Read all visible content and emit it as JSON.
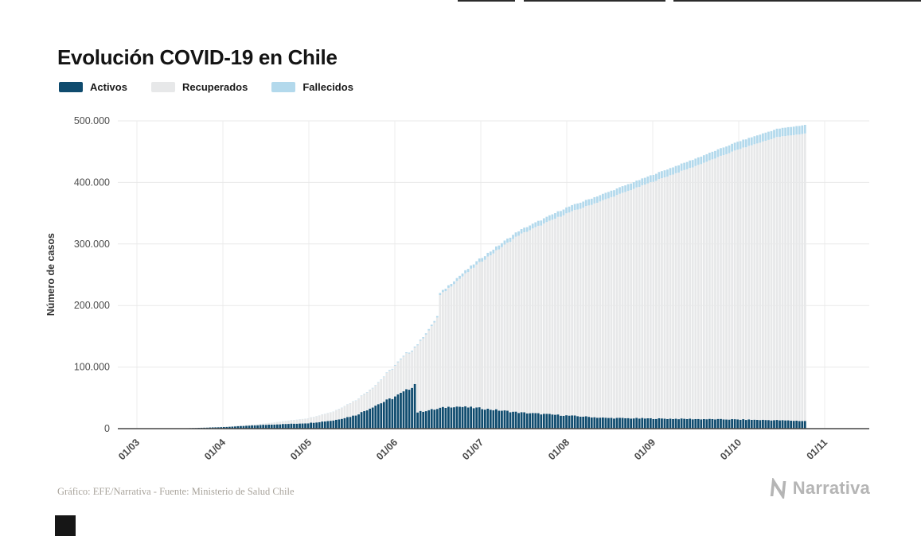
{
  "header": {
    "title": "Evolución COVID-19 en Chile"
  },
  "footer": {
    "source_note": "Gráfico: EFE/Narrativa - Fuente: Ministerio de Salud Chile",
    "brand": "Narrativa"
  },
  "chart_data": {
    "type": "bar",
    "stacked": true,
    "granularity": "daily",
    "title": "Evolución COVID-19 en Chile",
    "xlabel": "",
    "ylabel": "Número de casos",
    "ylim": [
      0,
      500000
    ],
    "grid": true,
    "legend_position": "top-left",
    "x_ticks": [
      "01/03",
      "01/04",
      "01/05",
      "01/06",
      "01/07",
      "01/08",
      "01/09",
      "01/10",
      "01/11"
    ],
    "y_ticks": [
      {
        "label": "0",
        "value": 0
      },
      {
        "label": "100.000",
        "value": 100000
      },
      {
        "label": "200.000",
        "value": 200000
      },
      {
        "label": "300.000",
        "value": 300000
      },
      {
        "label": "400.000",
        "value": 400000
      },
      {
        "label": "500.000",
        "value": 500000
      }
    ],
    "legend": [
      {
        "name": "Activos",
        "color": "#0f4b6e"
      },
      {
        "name": "Recuperados",
        "color": "#e7e8e9"
      },
      {
        "name": "Fallecidos",
        "color": "#b3d9ec"
      }
    ],
    "series_order_bottom_to_top": [
      "Activos",
      "Recuperados",
      "Fallecidos"
    ],
    "keyframes": [
      {
        "date": "01/03",
        "day": 0,
        "activos": 0,
        "recuperados": 0,
        "fallecidos": 0
      },
      {
        "date": "15/03",
        "day": 14,
        "activos": 70,
        "recuperados": 0,
        "fallecidos": 0
      },
      {
        "date": "01/04",
        "day": 31,
        "activos": 2600,
        "recuperados": 400,
        "fallecidos": 16
      },
      {
        "date": "15/04",
        "day": 45,
        "activos": 6200,
        "recuperados": 1800,
        "fallecidos": 94
      },
      {
        "date": "01/05",
        "day": 61,
        "activos": 9000,
        "recuperados": 7800,
        "fallecidos": 234
      },
      {
        "date": "10/05",
        "day": 70,
        "activos": 13500,
        "recuperados": 14200,
        "fallecidos": 312
      },
      {
        "date": "18/05",
        "day": 78,
        "activos": 22000,
        "recuperados": 24000,
        "fallecidos": 480
      },
      {
        "date": "25/05",
        "day": 85,
        "activos": 38000,
        "recuperados": 32500,
        "fallecidos": 760
      },
      {
        "date": "31/05",
        "day": 91,
        "activos": 50000,
        "recuperados": 47900,
        "fallecidos": 1054
      },
      {
        "date": "05/06",
        "day": 96,
        "activos": 62000,
        "recuperados": 58500,
        "fallecidos": 1448
      },
      {
        "date": "08/06",
        "day": 99,
        "activos": 73000,
        "recuperados": 59200,
        "fallecidos": 1637
      },
      {
        "date": "09/06",
        "day": 100,
        "activos": 27000,
        "recuperados": 109000,
        "fallecidos": 1700
      },
      {
        "date": "14/06",
        "day": 105,
        "activos": 31000,
        "recuperados": 134700,
        "fallecidos": 2290
      },
      {
        "date": "16/06",
        "day": 107,
        "activos": 32000,
        "recuperados": 148500,
        "fallecidos": 2475
      },
      {
        "date": "17/06",
        "day": 108,
        "activos": 33500,
        "recuperados": 183000,
        "fallecidos": 3500
      },
      {
        "date": "22/06",
        "day": 113,
        "activos": 36500,
        "recuperados": 200000,
        "fallecidos": 4500
      },
      {
        "date": "01/07",
        "day": 122,
        "activos": 33500,
        "recuperados": 236000,
        "fallecidos": 5688
      },
      {
        "date": "15/07",
        "day": 136,
        "activos": 26500,
        "recuperados": 287900,
        "fallecidos": 7069
      },
      {
        "date": "01/08",
        "day": 153,
        "activos": 21500,
        "recuperados": 328000,
        "fallecidos": 9608
      },
      {
        "date": "15/08",
        "day": 167,
        "activos": 17500,
        "recuperados": 355000,
        "fallecidos": 10395
      },
      {
        "date": "01/09",
        "day": 184,
        "activos": 16500,
        "recuperados": 385200,
        "fallecidos": 11289
      },
      {
        "date": "15/09",
        "day": 198,
        "activos": 15800,
        "recuperados": 409200,
        "fallecidos": 12013
      },
      {
        "date": "01/10",
        "day": 214,
        "activos": 15000,
        "recuperados": 438300,
        "fallecidos": 12741
      },
      {
        "date": "15/10",
        "day": 228,
        "activos": 13800,
        "recuperados": 459800,
        "fallecidos": 13396
      },
      {
        "date": "25/10",
        "day": 238,
        "activos": 12500,
        "recuperados": 467000,
        "fallecidos": 13944
      }
    ]
  }
}
